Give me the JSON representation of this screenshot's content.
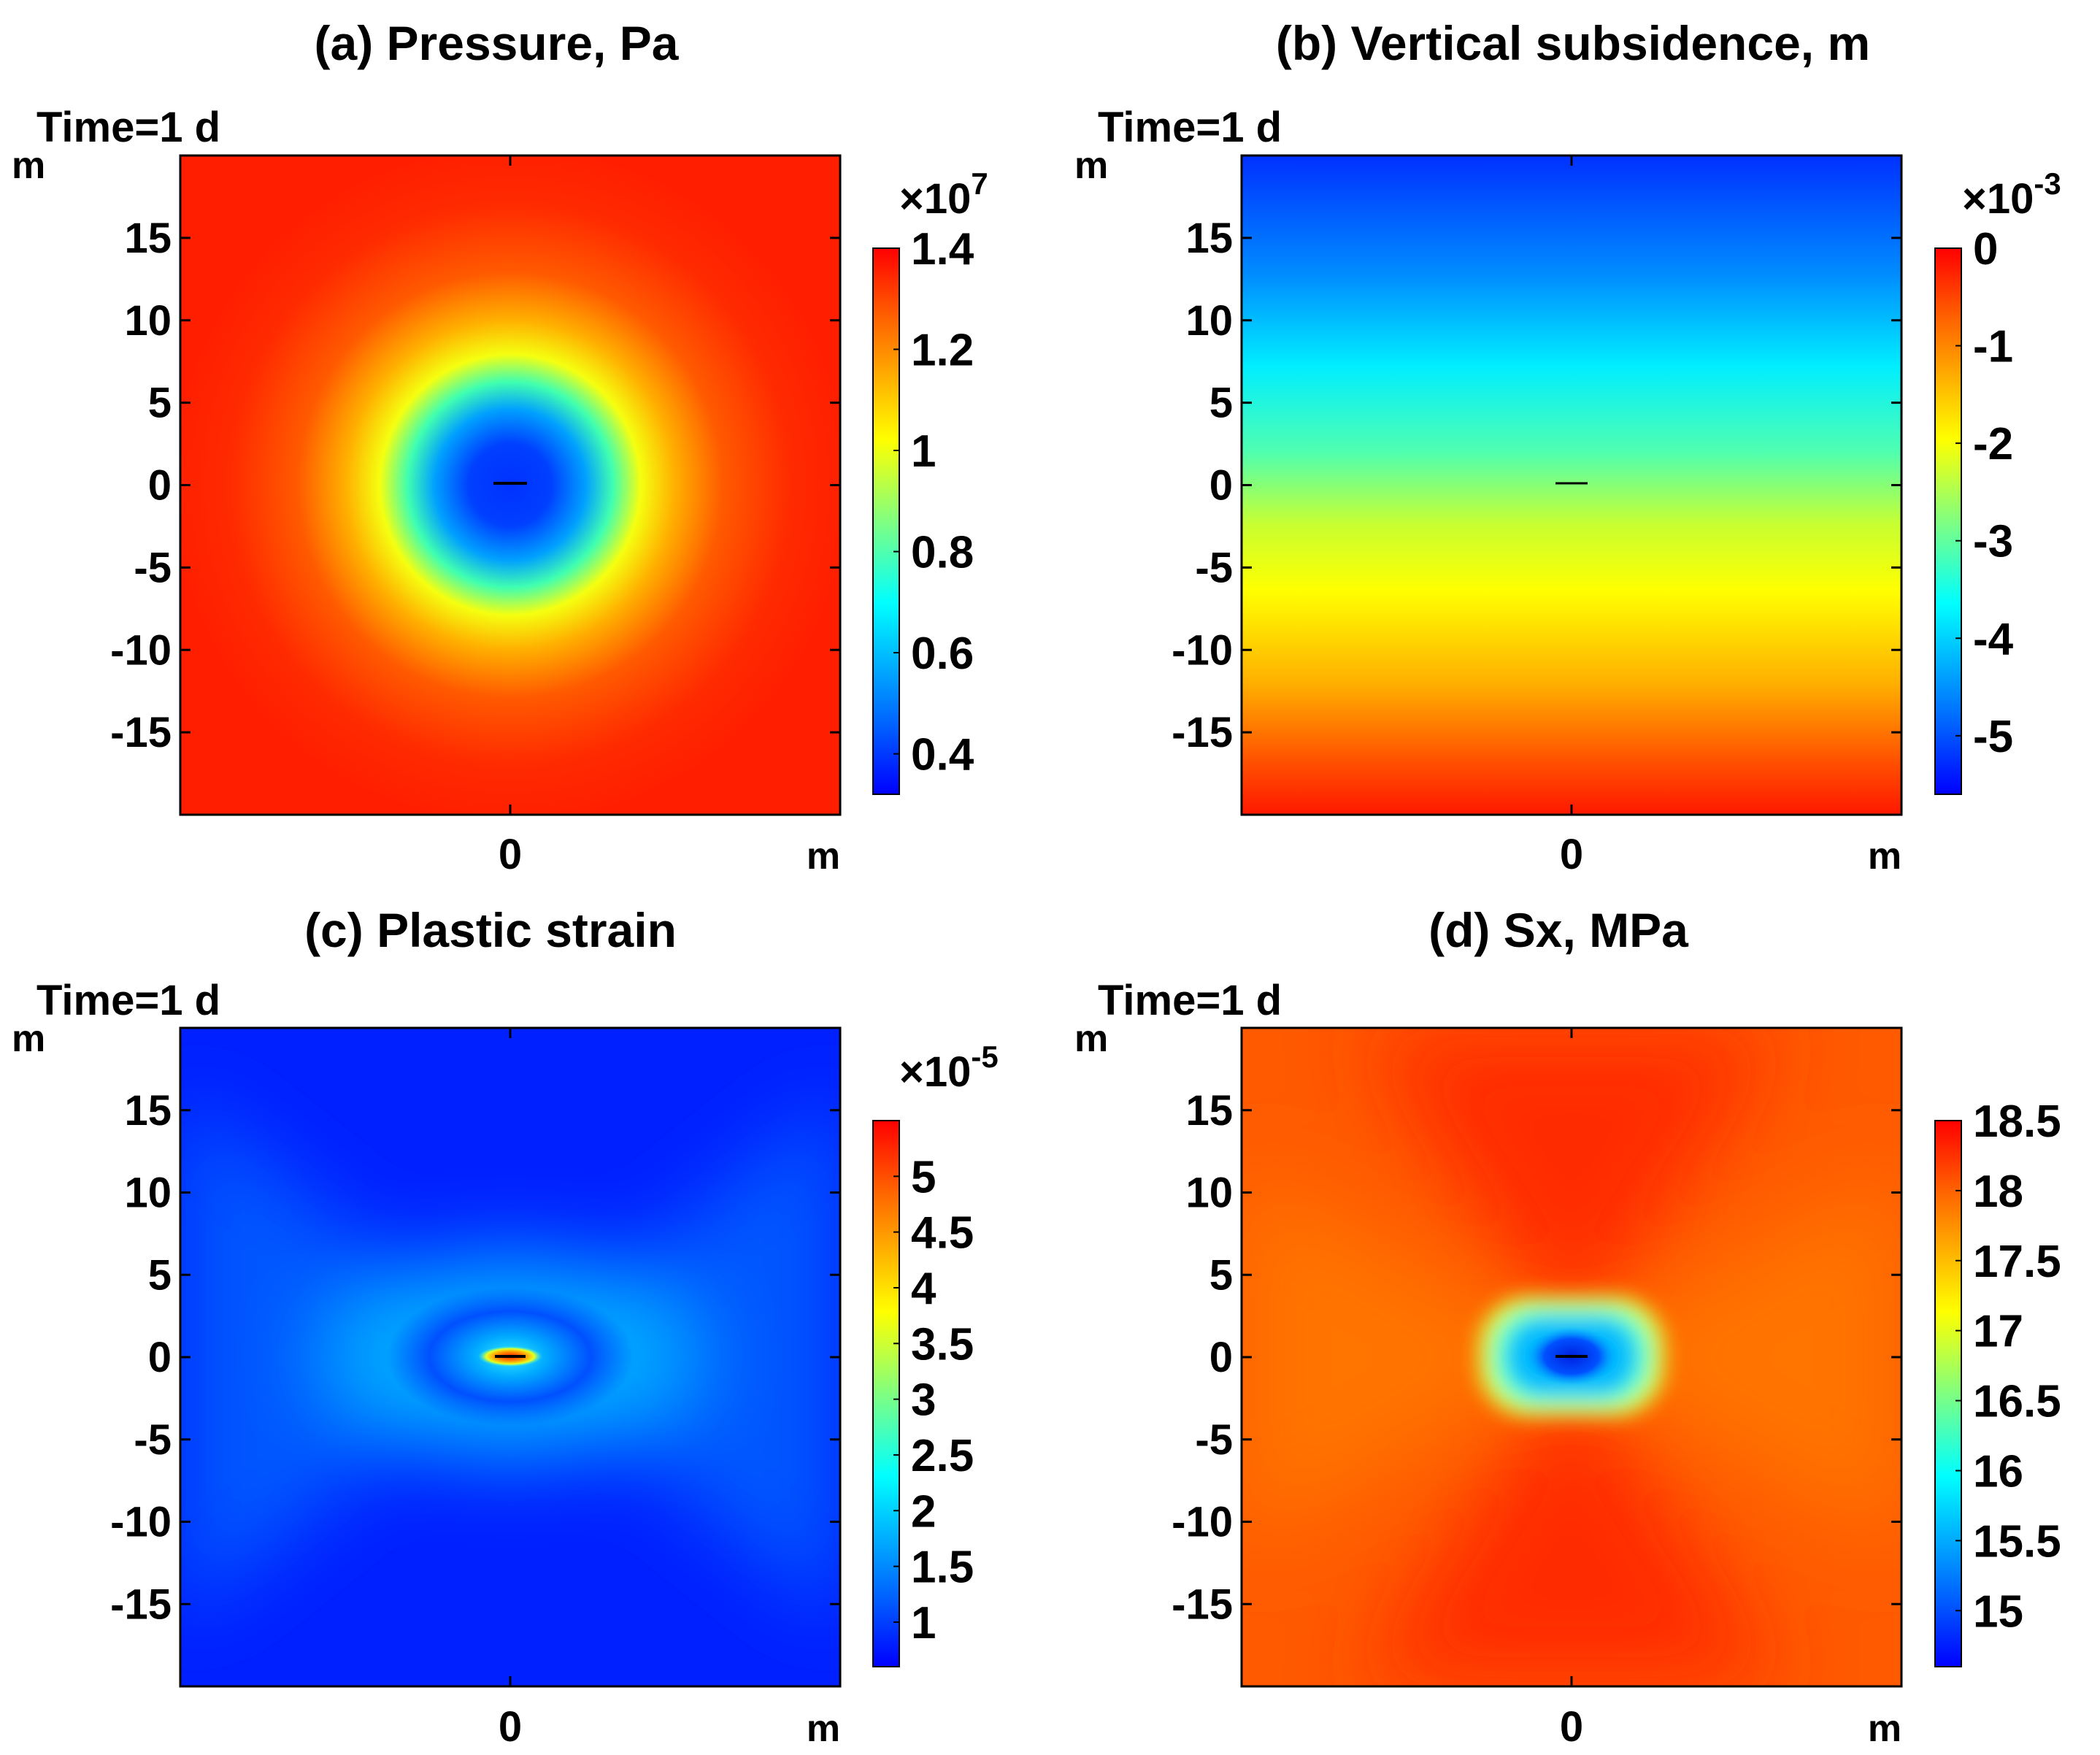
{
  "chart_data": [
    {
      "type": "heatmap",
      "panel": "a",
      "title": "(a) Pressure, Pa",
      "time_label": "Time=1 d",
      "xlabel": "m",
      "ylabel": "m",
      "x_ticks": [
        "0"
      ],
      "y_ticks": [
        "15",
        "10",
        "5",
        "0",
        "-5",
        "-10",
        "-15"
      ],
      "y_tick_values": [
        15,
        10,
        5,
        0,
        -5,
        -10,
        -15
      ],
      "xlim": [
        -20,
        20
      ],
      "ylim": [
        -20,
        20
      ],
      "field": "radial",
      "colorbar": {
        "multiplier": "×10",
        "exponent": "7",
        "ticks": [
          "1.4",
          "1.2",
          "1",
          "0.8",
          "0.6",
          "0.4"
        ],
        "tick_values": [
          1.4,
          1.2,
          1.0,
          0.8,
          0.6,
          0.4
        ],
        "range": [
          0.32,
          1.4
        ]
      },
      "colors": {
        "background": "#ff1d00",
        "center": "#0036ff"
      }
    },
    {
      "type": "heatmap",
      "panel": "b",
      "title": "(b) Vertical subsidence, m",
      "time_label": "Time=1 d",
      "xlabel": "m",
      "ylabel": "m",
      "x_ticks": [
        "0"
      ],
      "y_ticks": [
        "15",
        "10",
        "5",
        "0",
        "-5",
        "-10",
        "-15"
      ],
      "y_tick_values": [
        15,
        10,
        5,
        0,
        -5,
        -10,
        -15
      ],
      "xlim": [
        -20,
        20
      ],
      "ylim": [
        -20,
        20
      ],
      "field": "vertical-gradient",
      "colorbar": {
        "multiplier": "×10",
        "exponent": "-3",
        "ticks": [
          "0",
          "-1",
          "-2",
          "-3",
          "-4",
          "-5"
        ],
        "tick_values": [
          0,
          -1,
          -2,
          -3,
          -4,
          -5
        ],
        "range": [
          -5.6,
          0
        ]
      },
      "colors": {
        "top": "#0036ff",
        "bottom": "#ff1d00"
      }
    },
    {
      "type": "heatmap",
      "panel": "c",
      "title": "(c) Plastic strain",
      "time_label": "Time=1 d",
      "xlabel": "m",
      "ylabel": "m",
      "x_ticks": [
        "0"
      ],
      "y_ticks": [
        "15",
        "10",
        "5",
        "0",
        "-5",
        "-10",
        "-15"
      ],
      "y_tick_values": [
        15,
        10,
        5,
        0,
        -5,
        -10,
        -15
      ],
      "xlim": [
        -20,
        20
      ],
      "ylim": [
        -20,
        20
      ],
      "field": "x-shaped-low",
      "colorbar": {
        "multiplier": "×10",
        "exponent": "-5",
        "ticks": [
          "5",
          "4.5",
          "4",
          "3.5",
          "3",
          "2.5",
          "2",
          "1.5",
          "1"
        ],
        "tick_values": [
          5,
          4.5,
          4,
          3.5,
          3,
          2.5,
          2,
          1.5,
          1
        ],
        "range": [
          0.6,
          5.5
        ]
      },
      "colors": {
        "background": "#0020ff",
        "center": "#ff1d00"
      }
    },
    {
      "type": "heatmap",
      "panel": "d",
      "title": "(d) Sx, MPa",
      "time_label": "Time=1 d",
      "xlabel": "m",
      "ylabel": "m",
      "x_ticks": [
        "0"
      ],
      "y_ticks": [
        "15",
        "10",
        "5",
        "0",
        "-5",
        "-10",
        "-15"
      ],
      "y_tick_values": [
        15,
        10,
        5,
        0,
        -5,
        -10,
        -15
      ],
      "xlim": [
        -20,
        20
      ],
      "ylim": [
        -20,
        20
      ],
      "field": "x-shaped-high",
      "colorbar": {
        "multiplier": "",
        "exponent": "",
        "ticks": [
          "18.5",
          "18",
          "17.5",
          "17",
          "16.5",
          "16",
          "15.5",
          "15"
        ],
        "tick_values": [
          18.5,
          18,
          17.5,
          17,
          16.5,
          16,
          15.5,
          15
        ],
        "range": [
          14.6,
          18.5
        ]
      },
      "colors": {
        "background": "#ff5a00",
        "center": "#0036ff"
      }
    }
  ]
}
